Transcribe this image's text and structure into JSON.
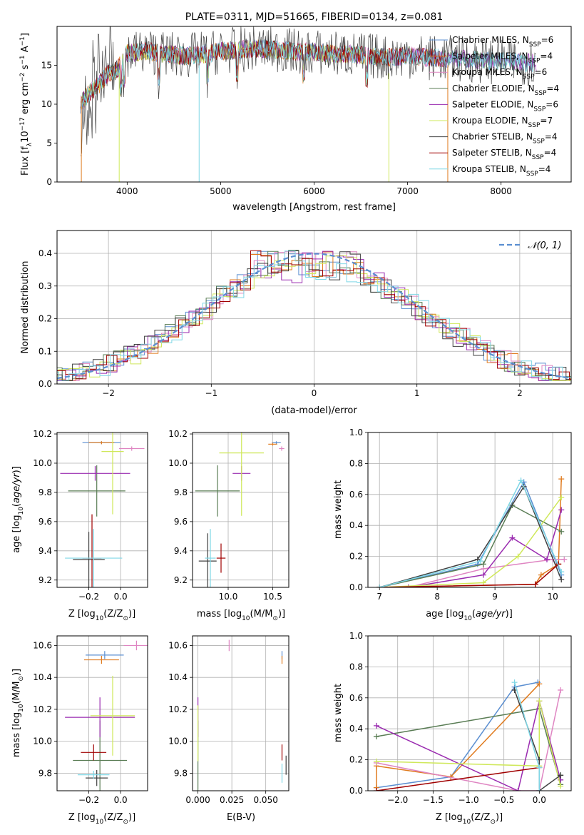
{
  "palette": [
    "#5b8fd1",
    "#e07b1f",
    "#df85c2",
    "#5a7d55",
    "#9a2bb0",
    "#cfe85a",
    "#404040",
    "#a00000",
    "#7fd7e6"
  ],
  "chart_data": [
    {
      "id": "spectrum",
      "type": "line",
      "title": "PLATE=0311, MJD=51665, FIBERID=0134, z=0.081",
      "xlabel": "wavelength [Angstrom, rest frame]",
      "ylabel_parts": {
        "pre": "Flux [f",
        "sub1": "λ",
        "mid": "10",
        "sup1": "−17",
        "mid2": " erg cm",
        "sup2": "−2",
        "mid3": " s",
        "sup3": "−1",
        "mid4": " A",
        "sup4": "−1",
        "post": "]"
      },
      "xlim": [
        3250,
        8750
      ],
      "ylim": [
        0,
        20
      ],
      "xticks": [
        4000,
        5000,
        6000,
        7000,
        8000
      ],
      "yticks": [
        0,
        5,
        10,
        15
      ],
      "legend_position": "right",
      "series": [
        {
          "label": "Chabrier MILES",
          "nssp": 6
        },
        {
          "label": "Salpeter MILES",
          "nssp": 4
        },
        {
          "label": "Kroupa MILES",
          "nssp": 6
        },
        {
          "label": "Chabrier ELODIE",
          "nssp": 4
        },
        {
          "label": "Salpeter ELODIE",
          "nssp": 6
        },
        {
          "label": "Kroupa ELODIE",
          "nssp": 7
        },
        {
          "label": "Chabrier STELIB",
          "nssp": 4
        },
        {
          "label": "Salpeter STELIB",
          "nssp": 4
        },
        {
          "label": "Kroupa STELIB",
          "nssp": 4
        }
      ],
      "approx_shape": {
        "x": [
          3500,
          3600,
          3700,
          3800,
          3900,
          4000,
          4200,
          4400,
          4600,
          4800,
          5000,
          5200,
          5400,
          5600,
          5800,
          6000,
          6200,
          6400,
          6600,
          6800,
          7000,
          7200,
          7400,
          7600,
          7800,
          8000,
          8200,
          8400
        ],
        "y": [
          10.0,
          11.5,
          12.5,
          14.0,
          14.5,
          16.5,
          16.8,
          16.5,
          16.2,
          16.4,
          16.8,
          17.0,
          17.2,
          17.0,
          16.8,
          16.7,
          16.5,
          16.4,
          16.2,
          16.0,
          16.3,
          16.0,
          15.9,
          15.8,
          15.6,
          15.5,
          15.4,
          15.3
        ]
      }
    },
    {
      "id": "residuals",
      "type": "bar",
      "xlabel": "(data-model)/error",
      "ylabel": "Normed distribution",
      "xlim": [
        -2.5,
        2.5
      ],
      "ylim": [
        0,
        0.47
      ],
      "xticks": [
        -2,
        -1,
        0,
        1,
        2
      ],
      "yticks": [
        0.0,
        0.1,
        0.2,
        0.3,
        0.4
      ],
      "legend": "𝒩(0, 1)",
      "legend_position": "top-right",
      "grid": true,
      "note": "histograms of nine fits, bin width 0.1"
    },
    {
      "id": "age_vs_Z",
      "type": "scatter",
      "xlabel_parts": {
        "pre": "Z [log",
        "sub": "10",
        "post": "(Z/Z",
        "sub2": "⊙",
        "end": ")]"
      },
      "ylabel_parts": {
        "pre": "age  [log",
        "sub": "10",
        "post": "(age/yr)]"
      },
      "xlim": [
        -0.4,
        0.17
      ],
      "ylim": [
        9.15,
        10.21
      ],
      "xticks": [
        -0.2,
        0.0
      ],
      "yticks": [
        9.2,
        9.4,
        9.6,
        9.8,
        10.0,
        10.2
      ],
      "grid": true,
      "points": [
        {
          "x": -0.12,
          "y": 10.14,
          "xerr": 0.12,
          "yerr": 0.02
        },
        {
          "x": -0.12,
          "y": 10.14,
          "xerr": 0.08,
          "yerr": 0.02
        },
        {
          "x": 0.07,
          "y": 10.1,
          "xerr": 0.08,
          "yerr": 0.03
        },
        {
          "x": -0.15,
          "y": 9.81,
          "xerr": 0.18,
          "yerr": 0.35
        },
        {
          "x": -0.16,
          "y": 9.93,
          "xerr": 0.22,
          "yerr": 0.1
        },
        {
          "x": -0.05,
          "y": 10.08,
          "xerr": 0.07,
          "yerr": 0.86
        },
        {
          "x": -0.2,
          "y": 9.34,
          "xerr": 0.1,
          "yerr": 0.38
        },
        {
          "x": -0.18,
          "y": 9.35,
          "xerr": 0.06,
          "yerr": 0.6
        },
        {
          "x": -0.17,
          "y": 9.35,
          "xerr": 0.18,
          "yerr": 0.4
        }
      ]
    },
    {
      "id": "age_vs_mass",
      "type": "scatter",
      "xlabel_parts": {
        "pre": "mass [log",
        "sub": "10",
        "post": "(M/M",
        "sub2": "⊙",
        "end": ")]"
      },
      "xlim": [
        9.6,
        10.68
      ],
      "ylim": [
        9.15,
        10.21
      ],
      "xticks": [
        10.0,
        10.5
      ],
      "yticks": [
        9.2,
        9.4,
        9.6,
        9.8,
        10.0,
        10.2
      ],
      "grid": true,
      "points": [
        {
          "x": 10.54,
          "y": 10.14,
          "xerr": 0.05,
          "yerr": 0.02
        },
        {
          "x": 10.5,
          "y": 10.13,
          "xerr": 0.05,
          "yerr": 0.02
        },
        {
          "x": 10.6,
          "y": 10.1,
          "xerr": 0.03,
          "yerr": 0.03
        },
        {
          "x": 9.88,
          "y": 9.81,
          "xerr": 0.25,
          "yerr": 0.35
        },
        {
          "x": 10.15,
          "y": 9.93,
          "xerr": 0.1,
          "yerr": 0.1
        },
        {
          "x": 10.15,
          "y": 10.07,
          "xerr": 0.25,
          "yerr": 0.86
        },
        {
          "x": 9.77,
          "y": 9.33,
          "xerr": 0.1,
          "yerr": 0.38
        },
        {
          "x": 9.92,
          "y": 9.35,
          "xerr": 0.05,
          "yerr": 0.2
        },
        {
          "x": 9.8,
          "y": 9.35,
          "xerr": 0.06,
          "yerr": 0.4
        }
      ]
    },
    {
      "id": "mass_weight_vs_age",
      "type": "line",
      "xlabel_parts": {
        "pre": "age  [log",
        "sub": "10",
        "post": "(age/yr)]"
      },
      "ylabel": "mass weight",
      "xlim": [
        6.8,
        10.32
      ],
      "ylim": [
        0,
        1.0
      ],
      "xticks": [
        7,
        8,
        9,
        10
      ],
      "yticks": [
        0.0,
        0.2,
        0.4,
        0.6,
        0.8,
        1.0
      ],
      "grid": true,
      "series": [
        {
          "x": [
            7.0,
            8.7,
            9.5,
            10.15
          ],
          "y": [
            0.0,
            0.15,
            0.68,
            0.08
          ]
        },
        {
          "x": [
            7.0,
            9.7,
            9.8,
            10.1,
            10.15
          ],
          "y": [
            0.0,
            0.02,
            0.08,
            0.15,
            0.7
          ]
        },
        {
          "x": [
            7.5,
            8.8,
            10.0,
            10.2
          ],
          "y": [
            0.0,
            0.12,
            0.18,
            0.18
          ]
        },
        {
          "x": [
            7.0,
            8.8,
            9.3,
            10.15
          ],
          "y": [
            0.0,
            0.15,
            0.53,
            0.36
          ]
        },
        {
          "x": [
            7.5,
            8.8,
            9.3,
            9.9,
            10.15
          ],
          "y": [
            0.0,
            0.08,
            0.32,
            0.18,
            0.5
          ]
        },
        {
          "x": [
            7.0,
            8.8,
            9.4,
            10.15
          ],
          "y": [
            0.0,
            0.03,
            0.2,
            0.58
          ]
        },
        {
          "x": [
            7.0,
            8.7,
            9.5,
            10.15
          ],
          "y": [
            0.0,
            0.18,
            0.65,
            0.05
          ]
        },
        {
          "x": [
            7.0,
            9.7,
            10.1
          ],
          "y": [
            0.0,
            0.02,
            0.15
          ]
        },
        {
          "x": [
            7.0,
            8.75,
            9.45,
            10.15
          ],
          "y": [
            0.0,
            0.17,
            0.69,
            0.1
          ]
        }
      ]
    },
    {
      "id": "mass_vs_Z",
      "type": "scatter",
      "xlabel_parts": {
        "pre": "Z [log",
        "sub": "10",
        "post": "(Z/Z",
        "sub2": "⊙",
        "end": ")]"
      },
      "ylabel_parts": {
        "pre": "mass [log",
        "sub": "10",
        "post": "(M/M",
        "sub2": "⊙",
        "end": ")]"
      },
      "xlim": [
        -0.4,
        0.17
      ],
      "ylim": [
        9.69,
        10.66
      ],
      "xticks": [
        -0.2,
        0.0
      ],
      "yticks": [
        9.8,
        10.0,
        10.2,
        10.4,
        10.6
      ],
      "grid": true,
      "points": [
        {
          "x": -0.1,
          "y": 10.54,
          "xerr": 0.12,
          "yerr": 0.05
        },
        {
          "x": -0.12,
          "y": 10.51,
          "xerr": 0.11,
          "yerr": 0.05
        },
        {
          "x": 0.1,
          "y": 10.6,
          "xerr": 0.08,
          "yerr": 0.06
        },
        {
          "x": -0.13,
          "y": 9.88,
          "xerr": 0.17,
          "yerr": 0.5
        },
        {
          "x": -0.13,
          "y": 10.15,
          "xerr": 0.22,
          "yerr": 0.25
        },
        {
          "x": -0.05,
          "y": 10.16,
          "xerr": 0.14,
          "yerr": 0.5
        },
        {
          "x": -0.15,
          "y": 9.77,
          "xerr": 0.07,
          "yerr": 0.1
        },
        {
          "x": -0.17,
          "y": 9.93,
          "xerr": 0.08,
          "yerr": 0.1
        },
        {
          "x": -0.17,
          "y": 9.79,
          "xerr": 0.1,
          "yerr": 0.05
        }
      ]
    },
    {
      "id": "mass_vs_ebv",
      "type": "scatter",
      "xlabel": "E(B-V)",
      "xlim": [
        -0.004,
        0.067
      ],
      "ylim": [
        9.69,
        10.66
      ],
      "xticks": [
        0.0,
        0.025,
        0.05
      ],
      "xticklabels": [
        "0.000",
        "0.025",
        "0.050"
      ],
      "yticks": [
        9.8,
        10.0,
        10.2,
        10.4,
        10.6
      ],
      "grid": true,
      "points": [
        {
          "x": 0.062,
          "y": 10.54,
          "xerr": 0.0,
          "yerr": 0.05
        },
        {
          "x": 0.062,
          "y": 10.51,
          "xerr": 0.0,
          "yerr": 0.05
        },
        {
          "x": 0.023,
          "y": 10.6,
          "xerr": 0.0,
          "yerr": 0.07
        },
        {
          "x": 0.0,
          "y": 9.88,
          "xerr": 0.0,
          "yerr": 0.5
        },
        {
          "x": 0.0,
          "y": 10.15,
          "xerr": 0.0,
          "yerr": 0.25
        },
        {
          "x": 0.0,
          "y": 10.05,
          "xerr": 0.0,
          "yerr": 0.35
        },
        {
          "x": 0.065,
          "y": 9.85,
          "xerr": 0.0,
          "yerr": 0.12
        },
        {
          "x": 0.062,
          "y": 9.93,
          "xerr": 0.0,
          "yerr": 0.1
        },
        {
          "x": 0.062,
          "y": 9.8,
          "xerr": 0.0,
          "yerr": 0.12
        }
      ]
    },
    {
      "id": "mass_weight_vs_Z",
      "type": "line",
      "xlabel_parts": {
        "pre": "Z [log",
        "sub": "10",
        "post": "(Z/Z",
        "sub2": "⊙",
        "end": ")]"
      },
      "ylabel": "mass weight",
      "xlim": [
        -2.42,
        0.45
      ],
      "ylim": [
        0,
        1.0
      ],
      "xticks": [
        -2.0,
        -1.5,
        -1.0,
        -0.5,
        0.0
      ],
      "yticks": [
        0.0,
        0.2,
        0.4,
        0.6,
        0.8,
        1.0
      ],
      "grid": true,
      "series": [
        {
          "x": [
            -2.3,
            -1.25,
            -0.35,
            -0.02
          ],
          "y": [
            0.02,
            0.09,
            0.67,
            0.7
          ]
        },
        {
          "x": [
            -2.3,
            -2.3,
            -1.25,
            0.0
          ],
          "y": [
            0.02,
            0.16,
            0.09,
            0.69
          ]
        },
        {
          "x": [
            -2.3,
            -0.3,
            0.0,
            0.3
          ],
          "y": [
            0.18,
            0.0,
            0.0,
            0.65
          ]
        },
        {
          "x": [
            -2.3,
            0.0,
            0.3,
            0.3
          ],
          "y": [
            0.35,
            0.53,
            0.04,
            0.1
          ]
        },
        {
          "x": [
            -2.3,
            -0.3,
            0.0,
            0.3
          ],
          "y": [
            0.42,
            0.0,
            0.58,
            0.07
          ]
        },
        {
          "x": [
            -2.3,
            0.0,
            0.0,
            0.3
          ],
          "y": [
            0.19,
            0.16,
            0.58,
            0.03
          ]
        },
        {
          "x": [
            -0.35,
            0.0,
            0.0,
            0.3
          ],
          "y": [
            0.65,
            0.2,
            0.0,
            0.1
          ]
        },
        {
          "x": [
            -2.3,
            0.0
          ],
          "y": [
            0.0,
            0.15
          ]
        },
        {
          "x": [
            -0.35,
            0.0,
            0.0
          ],
          "y": [
            0.7,
            0.15,
            0.0
          ]
        }
      ]
    }
  ]
}
